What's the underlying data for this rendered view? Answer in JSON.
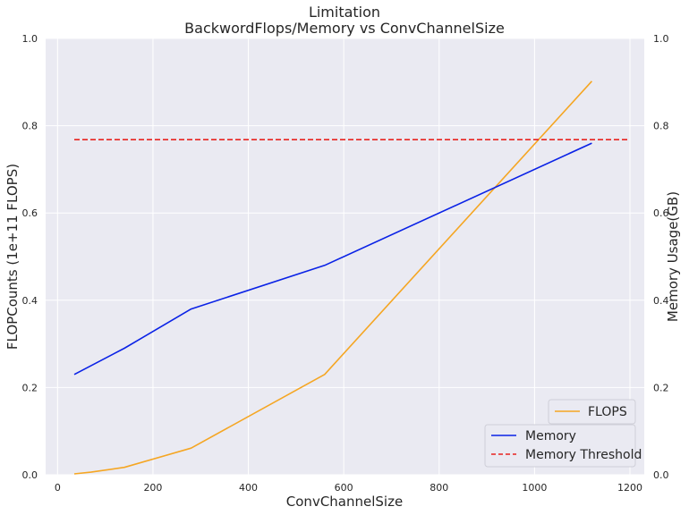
{
  "chart_data": {
    "type": "line",
    "title": "Limitation",
    "subtitle": "BackwordFlops/Memory vs ConvChannelSize",
    "xlabel": "ConvChannelSize",
    "ylabel_left": "FLOPCounts (1e+11 FLOPS)",
    "ylabel_right": "Memory Usage(GB)",
    "xlim": [
      -25,
      1230
    ],
    "ylim": [
      0,
      1.0
    ],
    "x_ticks": [
      "0",
      "200",
      "400",
      "600",
      "800",
      "1000",
      "1200"
    ],
    "y_ticks": [
      "0.0",
      "0.2",
      "0.4",
      "0.6",
      "0.8",
      "1.0"
    ],
    "grid": true,
    "series": [
      {
        "name": "FLOPS",
        "axis": "left",
        "color": "#f5a623",
        "style": "solid",
        "x": [
          35,
          70,
          140,
          280,
          560,
          1120
        ],
        "y": [
          0.002,
          0.006,
          0.017,
          0.061,
          0.23,
          0.902
        ]
      },
      {
        "name": "Memory",
        "axis": "right",
        "color": "#0a22e6",
        "style": "solid",
        "x": [
          35,
          140,
          280,
          560,
          1120
        ],
        "y": [
          0.23,
          0.29,
          0.38,
          0.48,
          0.76
        ]
      },
      {
        "name": "Memory Threshold",
        "axis": "right",
        "color": "#e8231f",
        "style": "dashed",
        "x": [
          35,
          1200
        ],
        "y": [
          0.768,
          0.768
        ]
      }
    ],
    "legends": [
      {
        "placement": "lower-right",
        "entries": [
          "FLOPS"
        ]
      },
      {
        "placement": "lower-right",
        "entries": [
          "Memory",
          "Memory Threshold"
        ]
      }
    ]
  }
}
